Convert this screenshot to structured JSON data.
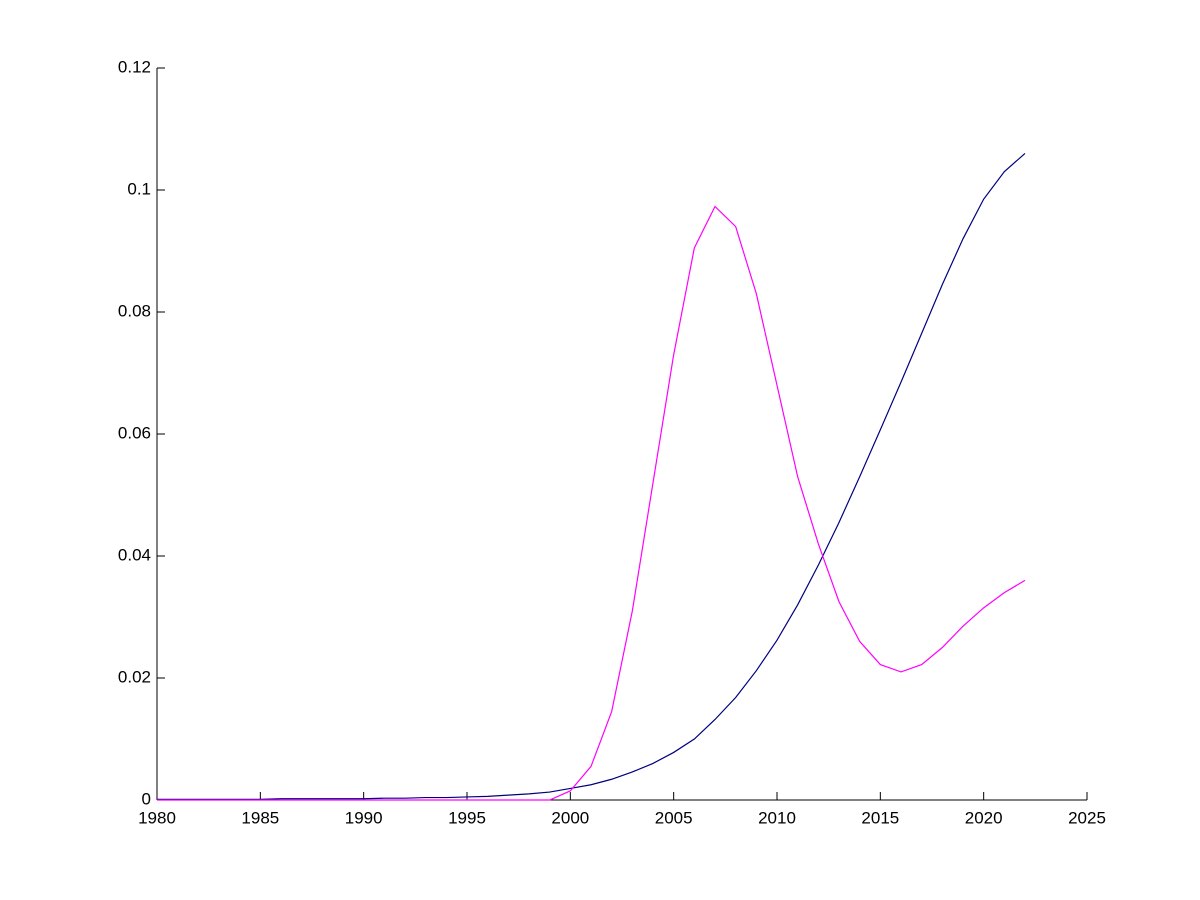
{
  "chart_data": {
    "type": "line",
    "x": [
      1980,
      1981,
      1982,
      1983,
      1984,
      1985,
      1986,
      1987,
      1988,
      1989,
      1990,
      1991,
      1992,
      1993,
      1994,
      1995,
      1996,
      1997,
      1998,
      1999,
      2000,
      2001,
      2002,
      2003,
      2004,
      2005,
      2006,
      2007,
      2008,
      2009,
      2010,
      2011,
      2012,
      2013,
      2014,
      2015,
      2016,
      2017,
      2018,
      2019,
      2020,
      2021,
      2022
    ],
    "series": [
      {
        "color": "#00007f",
        "values": [
          0.0001,
          0.0001,
          0.0001,
          0.0001,
          0.0001,
          0.0001,
          0.0002,
          0.0002,
          0.0002,
          0.0002,
          0.0002,
          0.0003,
          0.0003,
          0.0004,
          0.0004,
          0.0005,
          0.0006,
          0.0008,
          0.001,
          0.0013,
          0.0019,
          0.0025,
          0.0034,
          0.0046,
          0.006,
          0.0078,
          0.01,
          0.0132,
          0.0168,
          0.0212,
          0.0262,
          0.032,
          0.0385,
          0.0455,
          0.053,
          0.0607,
          0.0685,
          0.0765,
          0.0845,
          0.092,
          0.0985,
          0.103,
          0.106
        ]
      },
      {
        "color": "#ff00ff",
        "values": [
          0,
          0,
          0,
          0,
          0,
          0,
          0,
          0,
          0,
          0,
          0,
          0,
          0,
          0,
          0,
          0,
          0,
          0,
          0,
          0,
          0.0015,
          0.0055,
          0.0145,
          0.031,
          0.052,
          0.073,
          0.0905,
          0.0973,
          0.094,
          0.083,
          0.068,
          0.053,
          0.042,
          0.0325,
          0.026,
          0.0222,
          0.021,
          0.0222,
          0.025,
          0.0285,
          0.0315,
          0.034,
          0.036
        ]
      }
    ],
    "xlim": [
      1980,
      2025
    ],
    "xticks": [
      1980,
      1985,
      1990,
      1995,
      2000,
      2005,
      2010,
      2015,
      2020,
      2025
    ],
    "ylim": [
      0,
      0.12
    ],
    "yticks": [
      0,
      0.02,
      0.04,
      0.06,
      0.08,
      0.1,
      0.12
    ]
  }
}
